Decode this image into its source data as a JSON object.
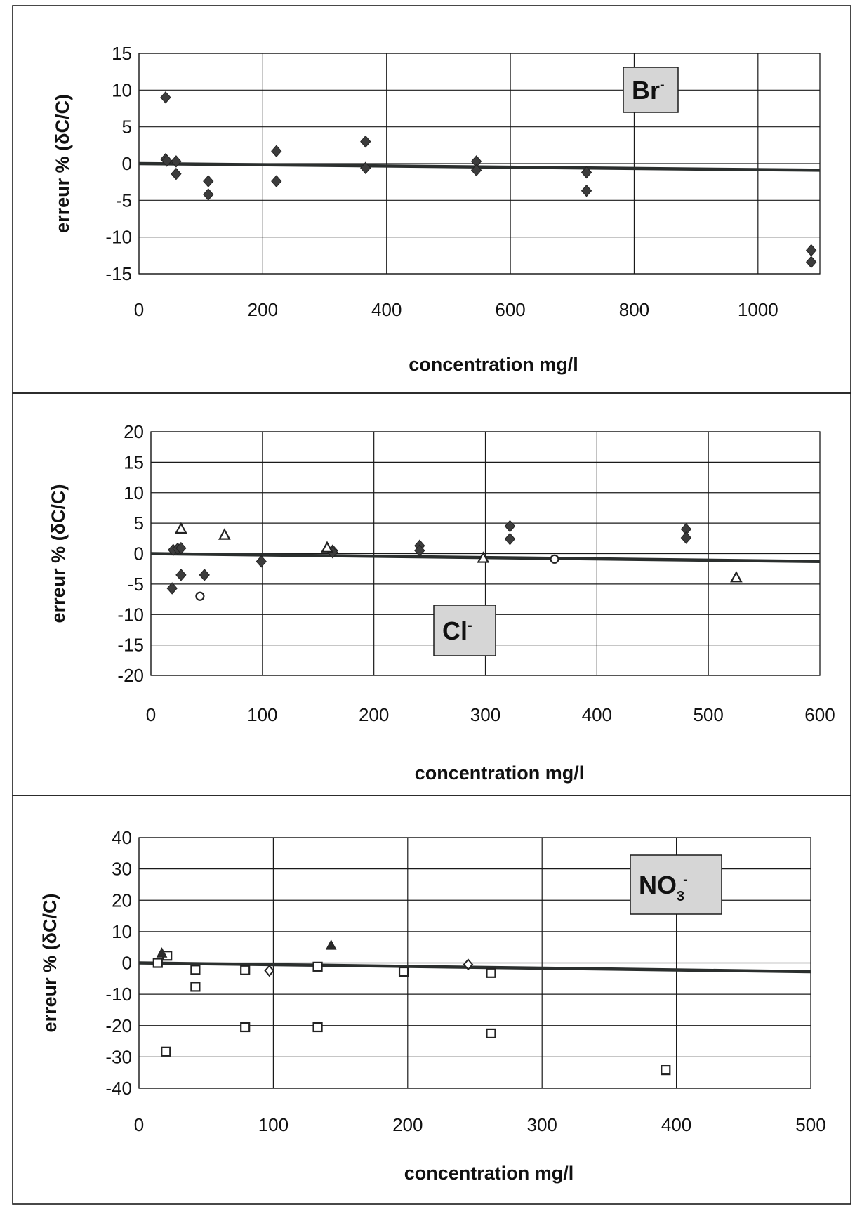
{
  "chart_data": [
    {
      "type": "scatter",
      "title": "",
      "badge": {
        "base": "Br",
        "sup": "-",
        "sub": ""
      },
      "xlabel": "concentration mg/l",
      "ylabel": "erreur % (δC/C)",
      "xlim": [
        0,
        1100
      ],
      "ylim": [
        -15,
        15
      ],
      "xticks": [
        0,
        200,
        400,
        600,
        800,
        1000
      ],
      "yticks": [
        15,
        10,
        5,
        0,
        -5,
        -10,
        -15
      ],
      "x_gridlines": [
        0,
        200,
        400,
        600,
        800,
        1000
      ],
      "y_gridlines": [
        15,
        10,
        5,
        0,
        -5,
        -10,
        -15
      ],
      "grid": true,
      "trend_line": {
        "x": [
          0,
          1100
        ],
        "y": [
          0,
          -0.9
        ]
      },
      "series": [
        {
          "marker": "diamond-filled",
          "points": [
            [
              43,
              9
            ],
            [
              43,
              0.6
            ],
            [
              45,
              0.4
            ],
            [
              60,
              0.3
            ],
            [
              60,
              -1.4
            ],
            [
              112,
              -2.4
            ],
            [
              112,
              -4.2
            ],
            [
              222,
              1.7
            ],
            [
              222,
              -2.4
            ],
            [
              366,
              3
            ],
            [
              366,
              -0.6
            ],
            [
              545,
              0.3
            ],
            [
              545,
              -0.9
            ],
            [
              723,
              -1.2
            ],
            [
              723,
              -3.7
            ],
            [
              1086,
              -11.8
            ],
            [
              1086,
              -13.4
            ]
          ]
        }
      ]
    },
    {
      "type": "scatter",
      "title": "",
      "badge": {
        "base": "Cl",
        "sup": "-",
        "sub": ""
      },
      "xlabel": "concentration mg/l",
      "ylabel": "erreur % (δC/C)",
      "xlim": [
        0,
        600
      ],
      "ylim": [
        -20,
        20
      ],
      "xticks": [
        0,
        100,
        200,
        300,
        400,
        500,
        600
      ],
      "yticks": [
        20,
        15,
        10,
        5,
        0,
        -5,
        -10,
        -15,
        -20
      ],
      "x_gridlines": [
        0,
        100,
        200,
        300,
        400,
        500
      ],
      "y_gridlines": [
        20,
        15,
        10,
        5,
        0,
        -5,
        -10,
        -15,
        -20
      ],
      "grid": true,
      "trend_line": {
        "x": [
          0,
          600
        ],
        "y": [
          0,
          -1.3
        ]
      },
      "series": [
        {
          "marker": "diamond-filled",
          "points": [
            [
              19,
              -5.7
            ],
            [
              20,
              0.6
            ],
            [
              24,
              0.8
            ],
            [
              27,
              0.9
            ],
            [
              27,
              -3.5
            ],
            [
              48,
              -3.5
            ],
            [
              99,
              -1.3
            ],
            [
              163,
              0.5
            ],
            [
              163,
              0.2
            ],
            [
              241,
              1.3
            ],
            [
              241,
              0.5
            ],
            [
              322,
              4.5
            ],
            [
              322,
              2.4
            ],
            [
              480,
              4
            ],
            [
              480,
              2.6
            ]
          ]
        },
        {
          "marker": "triangle-open",
          "points": [
            [
              27,
              4.1
            ],
            [
              66,
              3.1
            ],
            [
              158,
              1
            ],
            [
              298,
              -0.7
            ],
            [
              525,
              -3.9
            ]
          ]
        },
        {
          "marker": "circle-open",
          "points": [
            [
              44,
              -7
            ],
            [
              362,
              -0.9
            ]
          ]
        }
      ]
    },
    {
      "type": "scatter",
      "title": "",
      "badge": {
        "base": "NO",
        "sup": "-",
        "sub": "3"
      },
      "xlabel": "concentration mg/l",
      "ylabel": "erreur % (δC/C)",
      "xlim": [
        0,
        500
      ],
      "ylim": [
        -40,
        40
      ],
      "xticks": [
        0,
        100,
        200,
        300,
        400,
        500
      ],
      "yticks": [
        40,
        30,
        20,
        10,
        0,
        -10,
        -20,
        -30,
        -40
      ],
      "x_gridlines": [
        0,
        100,
        200,
        300,
        400
      ],
      "y_gridlines": [
        40,
        30,
        20,
        10,
        0,
        -10,
        -20,
        -30,
        -40
      ],
      "grid": true,
      "trend_line": {
        "x": [
          0,
          500
        ],
        "y": [
          0,
          -2.8
        ]
      },
      "series": [
        {
          "marker": "square-open",
          "points": [
            [
              14,
              0
            ],
            [
              21,
              2.3
            ],
            [
              20,
              -28.3
            ],
            [
              42,
              -2.2
            ],
            [
              42,
              -7.6
            ],
            [
              79,
              -2.3
            ],
            [
              79,
              -20.5
            ],
            [
              133,
              -1.2
            ],
            [
              133,
              -20.5
            ],
            [
              197,
              -2.8
            ],
            [
              262,
              -3.2
            ],
            [
              262,
              -22.5
            ],
            [
              392,
              -34.2
            ]
          ]
        },
        {
          "marker": "triangle-filled",
          "points": [
            [
              17,
              3.2
            ],
            [
              143,
              5.7
            ]
          ]
        },
        {
          "marker": "diamond-open",
          "points": [
            [
              97,
              -2.5
            ],
            [
              245,
              -0.5
            ]
          ]
        }
      ]
    }
  ]
}
